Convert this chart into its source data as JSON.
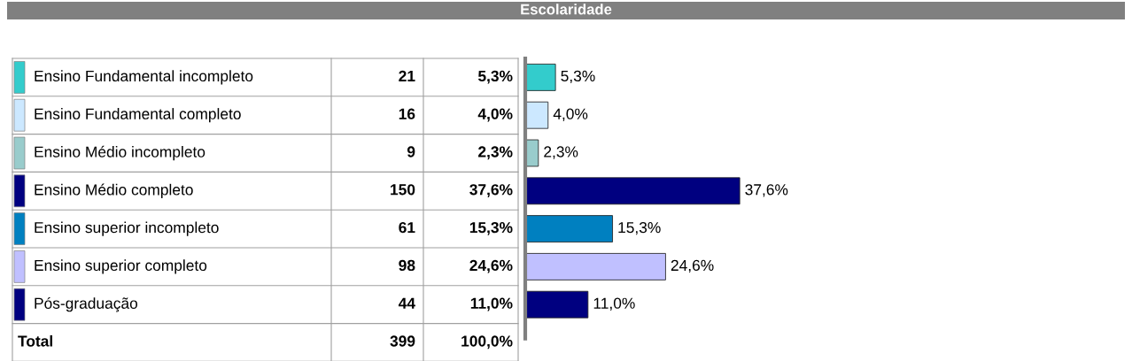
{
  "chart_data": [
    {
      "type": "other",
      "title": "Escolaridade",
      "categories": [
        "Ensino Fundamental incompleto",
        "Ensino Fundamental completo",
        "Ensino Médio incompleto",
        "Ensino Médio completo",
        "Ensino superior incompleto",
        "Ensino superior completo",
        "Pós-graduação",
        "Total"
      ],
      "series": [
        {
          "values": [
            21,
            16,
            9,
            150,
            61,
            98,
            44,
            399
          ]
        },
        {
          "values": [
            5.3,
            4.0,
            2.3,
            37.6,
            15.3,
            24.6,
            11.0,
            100.0
          ],
          "value_labels": [
            "5,3%",
            "4,0%",
            "2,3%",
            "37,6%",
            "15,3%",
            "24,6%",
            "11,0%",
            "100,0%"
          ]
        }
      ],
      "colors": [
        "#33cccc",
        "#cce8ff",
        "#99cccc",
        "#000080",
        "#0080c0",
        "#c0c0ff",
        "#000080",
        null
      ],
      "data_labels": true
    },
    {
      "type": "bar",
      "orientation": "horizontal",
      "categories": [
        null,
        null,
        null,
        null,
        null,
        null,
        null
      ],
      "values": [
        5.3,
        4.0,
        2.3,
        37.6,
        15.3,
        24.6,
        11.0
      ],
      "value_labels": [
        "5,3%",
        "4,0%",
        "2,3%",
        "37,6%",
        "15,3%",
        "24,6%",
        "11,0%"
      ],
      "colors": [
        "#33cccc",
        "#cce8ff",
        "#99cccc",
        "#000080",
        "#0080c0",
        "#c0c0ff",
        "#000080"
      ],
      "grid": false,
      "legend": false
    }
  ]
}
